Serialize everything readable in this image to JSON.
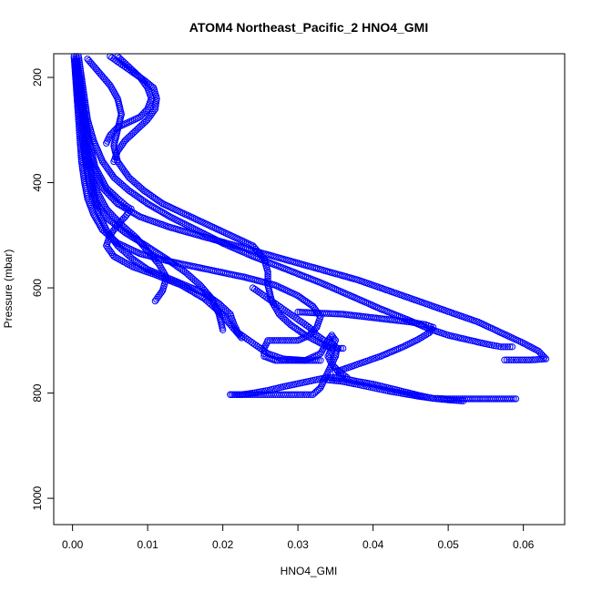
{
  "chart_data": {
    "type": "scatter",
    "title": "ATOM4 Northeast_Pacific_2 HNO4_GMI",
    "xlabel": "HNO4_GMI",
    "ylabel": "Pressure (mbar)",
    "xlim": [
      -0.0025,
      0.0655
    ],
    "ylim": [
      1050,
      155
    ],
    "y_reversed": true,
    "grid": false,
    "marker": "open-circle",
    "color": "#0000ff",
    "x_ticks": [
      0.0,
      0.01,
      0.02,
      0.03,
      0.04,
      0.05,
      0.06
    ],
    "x_tick_labels": [
      "0.00",
      "0.01",
      "0.02",
      "0.03",
      "0.04",
      "0.05",
      "0.06"
    ],
    "y_ticks": [
      200,
      400,
      600,
      800,
      1000
    ],
    "y_tick_labels": [
      "200",
      "400",
      "600",
      "800",
      "1000"
    ],
    "series": [
      {
        "points": [
          [
            0.0005,
            160
          ],
          [
            0.0008,
            190
          ],
          [
            0.001,
            220
          ],
          [
            0.0012,
            250
          ],
          [
            0.0015,
            280
          ],
          [
            0.0018,
            310
          ],
          [
            0.002,
            340
          ],
          [
            0.0023,
            370
          ],
          [
            0.0026,
            400
          ],
          [
            0.003,
            430
          ],
          [
            0.0035,
            460
          ],
          [
            0.0045,
            490
          ],
          [
            0.006,
            520
          ],
          [
            0.008,
            545
          ],
          [
            0.01,
            565
          ],
          [
            0.0125,
            580
          ],
          [
            0.015,
            595
          ],
          [
            0.0175,
            610
          ],
          [
            0.0195,
            630
          ],
          [
            0.021,
            650
          ],
          [
            0.0215,
            670
          ],
          [
            0.022,
            685
          ],
          [
            0.023,
            695
          ],
          [
            0.024,
            705
          ],
          [
            0.025,
            715
          ],
          [
            0.026,
            725
          ],
          [
            0.028,
            735
          ],
          [
            0.031,
            738
          ],
          [
            0.033,
            725
          ],
          [
            0.034,
            700
          ],
          [
            0.0345,
            690
          ],
          [
            0.035,
            700
          ],
          [
            0.0345,
            715
          ],
          [
            0.034,
            730
          ],
          [
            0.0345,
            745
          ],
          [
            0.0355,
            760
          ],
          [
            0.0365,
            770
          ]
        ]
      },
      {
        "points": [
          [
            0.0002,
            160
          ],
          [
            0.0004,
            200
          ],
          [
            0.0006,
            240
          ],
          [
            0.0008,
            280
          ],
          [
            0.001,
            320
          ],
          [
            0.0012,
            360
          ],
          [
            0.0016,
            400
          ],
          [
            0.002,
            430
          ],
          [
            0.0028,
            460
          ],
          [
            0.004,
            490
          ],
          [
            0.006,
            515
          ],
          [
            0.009,
            535
          ],
          [
            0.013,
            550
          ],
          [
            0.018,
            565
          ],
          [
            0.023,
            580
          ],
          [
            0.027,
            595
          ],
          [
            0.03,
            615
          ],
          [
            0.032,
            635
          ],
          [
            0.033,
            655
          ],
          [
            0.0325,
            675
          ],
          [
            0.0315,
            690
          ],
          [
            0.03,
            700
          ],
          [
            0.028,
            700
          ],
          [
            0.026,
            700
          ],
          [
            0.0255,
            715
          ],
          [
            0.0255,
            730
          ],
          [
            0.027,
            738
          ],
          [
            0.03,
            738
          ],
          [
            0.033,
            738
          ]
        ]
      },
      {
        "points": [
          [
            0.0003,
            170
          ],
          [
            0.0006,
            210
          ],
          [
            0.001,
            250
          ],
          [
            0.0015,
            290
          ],
          [
            0.002,
            330
          ],
          [
            0.0028,
            370
          ],
          [
            0.004,
            410
          ],
          [
            0.006,
            440
          ],
          [
            0.009,
            465
          ],
          [
            0.013,
            485
          ],
          [
            0.018,
            505
          ],
          [
            0.023,
            525
          ],
          [
            0.028,
            545
          ],
          [
            0.033,
            565
          ],
          [
            0.038,
            585
          ],
          [
            0.042,
            605
          ],
          [
            0.046,
            625
          ],
          [
            0.05,
            645
          ],
          [
            0.054,
            665
          ],
          [
            0.057,
            685
          ],
          [
            0.06,
            705
          ],
          [
            0.062,
            720
          ],
          [
            0.063,
            735
          ],
          [
            0.061,
            737
          ],
          [
            0.059,
            737
          ],
          [
            0.0575,
            737
          ]
        ]
      },
      {
        "points": [
          [
            0.0008,
            160
          ],
          [
            0.0012,
            200
          ],
          [
            0.0016,
            240
          ],
          [
            0.002,
            280
          ],
          [
            0.0028,
            320
          ],
          [
            0.004,
            360
          ],
          [
            0.0055,
            390
          ],
          [
            0.0075,
            415
          ],
          [
            0.01,
            440
          ],
          [
            0.013,
            465
          ],
          [
            0.0165,
            490
          ],
          [
            0.02,
            515
          ],
          [
            0.024,
            540
          ],
          [
            0.0285,
            565
          ],
          [
            0.033,
            590
          ],
          [
            0.037,
            615
          ],
          [
            0.041,
            640
          ],
          [
            0.0445,
            660
          ],
          [
            0.0475,
            678
          ],
          [
            0.05,
            690
          ],
          [
            0.053,
            700
          ],
          [
            0.0555,
            708
          ],
          [
            0.057,
            712
          ],
          [
            0.0585,
            712
          ]
        ]
      },
      {
        "points": [
          [
            0.002,
            165
          ],
          [
            0.0035,
            190
          ],
          [
            0.005,
            215
          ],
          [
            0.006,
            240
          ],
          [
            0.0065,
            270
          ],
          [
            0.006,
            300
          ],
          [
            0.0055,
            330
          ],
          [
            0.006,
            360
          ],
          [
            0.0075,
            390
          ],
          [
            0.0095,
            415
          ],
          [
            0.012,
            440
          ],
          [
            0.015,
            460
          ],
          [
            0.018,
            480
          ],
          [
            0.021,
            500
          ],
          [
            0.024,
            520
          ],
          [
            0.0255,
            545
          ],
          [
            0.026,
            570
          ],
          [
            0.026,
            595
          ],
          [
            0.0265,
            625
          ],
          [
            0.0275,
            650
          ],
          [
            0.029,
            670
          ],
          [
            0.031,
            690
          ],
          [
            0.033,
            705
          ],
          [
            0.0345,
            715
          ],
          [
            0.036,
            715
          ]
        ]
      },
      {
        "points": [
          [
            0.005,
            160
          ],
          [
            0.0065,
            175
          ],
          [
            0.008,
            190
          ],
          [
            0.0095,
            205
          ],
          [
            0.0108,
            220
          ],
          [
            0.0112,
            240
          ],
          [
            0.011,
            260
          ],
          [
            0.01,
            280
          ],
          [
            0.0085,
            300
          ],
          [
            0.007,
            320
          ],
          [
            0.006,
            340
          ],
          [
            0.0055,
            360
          ]
        ]
      },
      {
        "points": [
          [
            0.006,
            160
          ],
          [
            0.0075,
            180
          ],
          [
            0.009,
            200
          ],
          [
            0.01,
            220
          ],
          [
            0.0105,
            240
          ],
          [
            0.01,
            260
          ],
          [
            0.009,
            275
          ],
          [
            0.0075,
            285
          ],
          [
            0.006,
            295
          ],
          [
            0.005,
            310
          ],
          [
            0.0045,
            325
          ]
        ]
      },
      {
        "points": [
          [
            0.001,
            200
          ],
          [
            0.0015,
            260
          ],
          [
            0.0022,
            320
          ],
          [
            0.003,
            370
          ],
          [
            0.0045,
            410
          ],
          [
            0.006,
            430
          ],
          [
            0.0072,
            445
          ],
          [
            0.0078,
            450
          ],
          [
            0.007,
            465
          ],
          [
            0.006,
            480
          ],
          [
            0.005,
            500
          ],
          [
            0.0045,
            520
          ],
          [
            0.0055,
            540
          ],
          [
            0.008,
            560
          ],
          [
            0.011,
            575
          ],
          [
            0.0145,
            595
          ],
          [
            0.0175,
            620
          ],
          [
            0.0195,
            645
          ],
          [
            0.021,
            670
          ],
          [
            0.0225,
            695
          ]
        ]
      },
      {
        "points": [
          [
            0.021,
            803
          ],
          [
            0.0225,
            803
          ],
          [
            0.024,
            800
          ],
          [
            0.026,
            795
          ],
          [
            0.028,
            788
          ],
          [
            0.03,
            782
          ],
          [
            0.032,
            776
          ],
          [
            0.034,
            770
          ],
          [
            0.036,
            772
          ],
          [
            0.038,
            778
          ],
          [
            0.04,
            783
          ],
          [
            0.042,
            790
          ],
          [
            0.044,
            797
          ],
          [
            0.046,
            804
          ],
          [
            0.048,
            810
          ],
          [
            0.05,
            811
          ],
          [
            0.053,
            811
          ],
          [
            0.056,
            811
          ],
          [
            0.059,
            811
          ]
        ]
      },
      {
        "points": [
          [
            0.021,
            803
          ],
          [
            0.024,
            803
          ],
          [
            0.027,
            803
          ],
          [
            0.03,
            803
          ],
          [
            0.032,
            803
          ],
          [
            0.033,
            790
          ],
          [
            0.0335,
            775
          ],
          [
            0.034,
            760
          ],
          [
            0.0345,
            745
          ],
          [
            0.035,
            730
          ],
          [
            0.0352,
            715
          ],
          [
            0.0345,
            705
          ],
          [
            0.0335,
            700
          ],
          [
            0.0325,
            690
          ],
          [
            0.0315,
            675
          ],
          [
            0.03,
            660
          ],
          [
            0.0285,
            645
          ],
          [
            0.027,
            630
          ],
          [
            0.0255,
            615
          ],
          [
            0.024,
            600
          ]
        ]
      },
      {
        "points": [
          [
            0.035,
            760
          ],
          [
            0.038,
            745
          ],
          [
            0.041,
            730
          ],
          [
            0.044,
            712
          ],
          [
            0.046,
            698
          ],
          [
            0.0475,
            685
          ],
          [
            0.048,
            675
          ],
          [
            0.047,
            670
          ],
          [
            0.045,
            665
          ],
          [
            0.042,
            660
          ],
          [
            0.039,
            655
          ],
          [
            0.036,
            650
          ],
          [
            0.033,
            648
          ],
          [
            0.03,
            646
          ]
        ]
      },
      {
        "points": [
          [
            0.034,
            775
          ],
          [
            0.036,
            778
          ],
          [
            0.038,
            784
          ],
          [
            0.04,
            790
          ],
          [
            0.042,
            796
          ],
          [
            0.044,
            801
          ],
          [
            0.046,
            806
          ],
          [
            0.048,
            810
          ],
          [
            0.05,
            813
          ],
          [
            0.052,
            815
          ]
        ]
      },
      {
        "points": [
          [
            0.0004,
            170
          ],
          [
            0.0007,
            230
          ],
          [
            0.0011,
            290
          ],
          [
            0.0016,
            350
          ],
          [
            0.0022,
            400
          ],
          [
            0.0032,
            440
          ],
          [
            0.0048,
            470
          ],
          [
            0.007,
            495
          ],
          [
            0.0098,
            520
          ],
          [
            0.0125,
            545
          ],
          [
            0.015,
            570
          ],
          [
            0.017,
            595
          ],
          [
            0.0185,
            620
          ],
          [
            0.0195,
            650
          ],
          [
            0.02,
            680
          ]
        ]
      },
      {
        "points": [
          [
            0.0006,
            180
          ],
          [
            0.001,
            240
          ],
          [
            0.0014,
            300
          ],
          [
            0.002,
            360
          ],
          [
            0.003,
            410
          ],
          [
            0.0045,
            450
          ],
          [
            0.0065,
            480
          ],
          [
            0.0085,
            505
          ],
          [
            0.01,
            530
          ],
          [
            0.0115,
            555
          ],
          [
            0.0125,
            580
          ],
          [
            0.012,
            605
          ],
          [
            0.011,
            625
          ]
        ]
      }
    ]
  }
}
